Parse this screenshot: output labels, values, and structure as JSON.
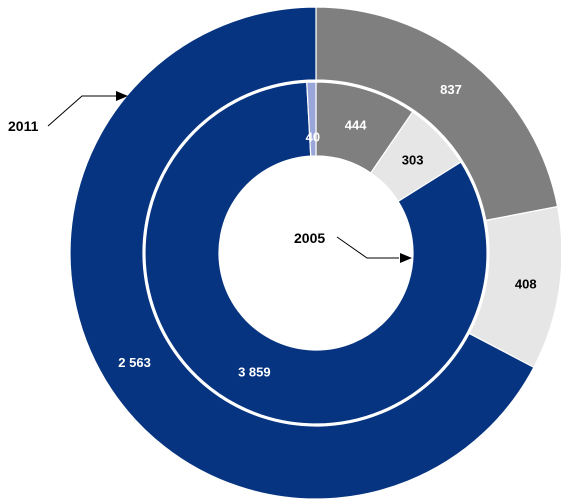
{
  "chart_data": {
    "type": "pie",
    "subtype": "nested-donut",
    "rings": [
      {
        "name": "2011",
        "position": "outer",
        "values": [
          837,
          408,
          2563
        ],
        "labels": [
          "837",
          "408",
          "2 563"
        ],
        "colors": [
          "#7f7f7f",
          "#e6e6e6",
          "#073480"
        ],
        "label_colors": [
          "#ffffff",
          "#000000",
          "#ffffff"
        ]
      },
      {
        "name": "2005",
        "position": "inner",
        "values": [
          444,
          303,
          3859,
          40
        ],
        "labels": [
          "444",
          "303",
          "3 859",
          "40"
        ],
        "colors": [
          "#7f7f7f",
          "#e6e6e6",
          "#073480",
          "#9aa6d9"
        ],
        "label_colors": [
          "#ffffff",
          "#000000",
          "#ffffff",
          "#ffffff"
        ]
      }
    ],
    "annotations": [
      "2011",
      "2005"
    ],
    "start_angle": "12 o'clock",
    "direction": "clockwise"
  }
}
